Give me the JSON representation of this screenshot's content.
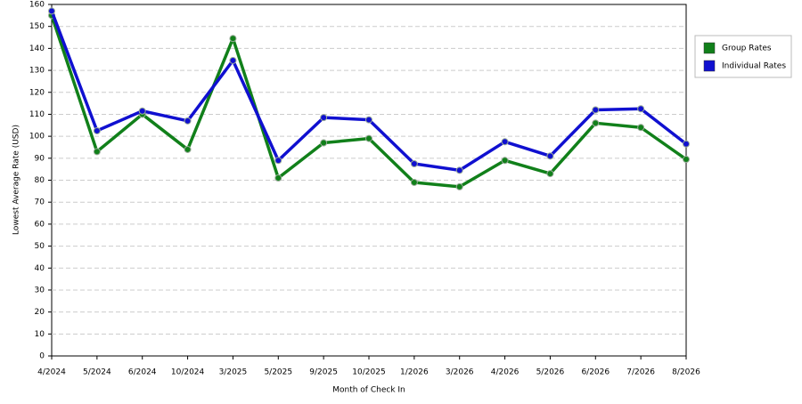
{
  "chart_data": {
    "type": "line",
    "x_label": "Month of Check In",
    "y_label": "Lowest Average Rate (USD)",
    "categories": [
      "4/2024",
      "5/2024",
      "6/2024",
      "10/2024",
      "3/2025",
      "5/2025",
      "9/2025",
      "10/2025",
      "1/2026",
      "3/2026",
      "4/2026",
      "5/2026",
      "6/2026",
      "7/2026",
      "8/2026"
    ],
    "series": [
      {
        "name": "Group Rates",
        "color": "#11801a",
        "values": [
          155,
          93,
          110,
          94,
          144.5,
          81,
          97,
          99,
          79,
          77,
          89,
          83,
          106,
          104,
          89.5
        ]
      },
      {
        "name": "Individual Rates",
        "color": "#1010d0",
        "values": [
          157,
          102.5,
          111.5,
          107,
          134.5,
          89,
          108.5,
          107.5,
          87.5,
          84.5,
          97.5,
          91,
          112,
          112.5,
          96.5
        ]
      }
    ],
    "ylim": [
      0,
      160
    ],
    "yticks": [
      0,
      10,
      20,
      30,
      40,
      50,
      60,
      70,
      80,
      90,
      100,
      110,
      120,
      130,
      140,
      150,
      160
    ],
    "grid": true,
    "legend": "right"
  }
}
